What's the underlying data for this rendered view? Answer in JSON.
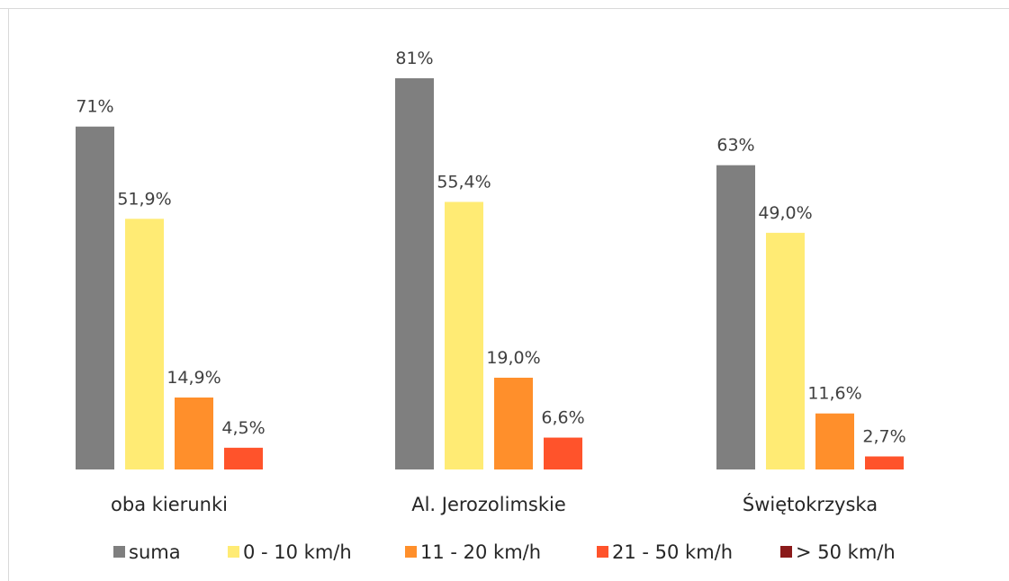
{
  "chart_data": {
    "type": "bar",
    "categories": [
      "oba kierunki",
      "Al. Jerozolimskie",
      "Świętokrzyska"
    ],
    "series": [
      {
        "name": "suma",
        "color": "#7f7f7f",
        "values": [
          71,
          81,
          63
        ],
        "labels": [
          "71%",
          "81%",
          "63%"
        ]
      },
      {
        "name": "0 - 10 km/h",
        "color": "#ffeb74",
        "values": [
          51.9,
          55.4,
          49.0
        ],
        "labels": [
          "51,9%",
          "55,4%",
          "49,0%"
        ]
      },
      {
        "name": "11 - 20 km/h",
        "color": "#ff8f2b",
        "values": [
          14.9,
          19.0,
          11.6
        ],
        "labels": [
          "14,9%",
          "19,0%",
          "11,6%"
        ]
      },
      {
        "name": "21 - 50 km/h",
        "color": "#ff532b",
        "values": [
          4.5,
          6.6,
          2.7
        ],
        "labels": [
          "4,5%",
          "6,6%",
          "2,7%"
        ]
      },
      {
        "name": "> 50 km/h",
        "color": "#8b1a1a",
        "values": [
          0,
          0,
          0
        ],
        "labels": [
          "",
          "",
          ""
        ]
      }
    ],
    "title": "",
    "xlabel": "",
    "ylabel": "",
    "ylim": [
      0,
      81
    ],
    "grid": false,
    "legend": "bottom",
    "data_labels": true
  }
}
